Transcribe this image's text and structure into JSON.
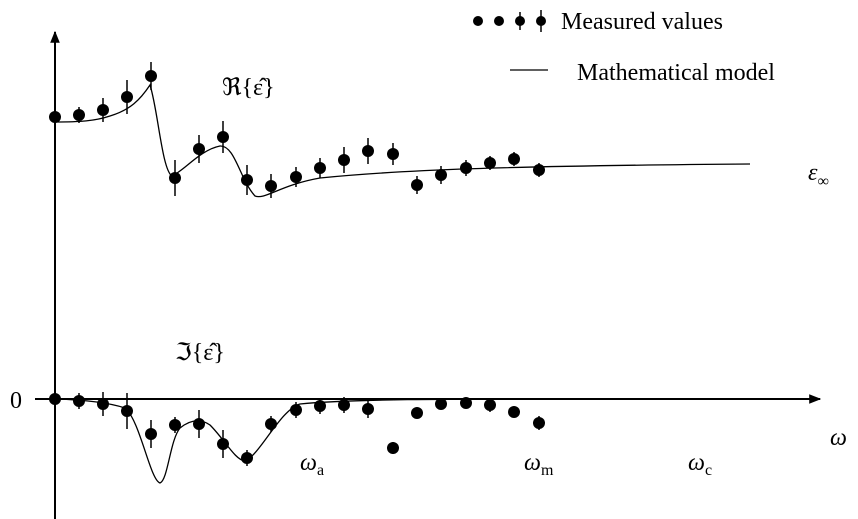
{
  "legend": {
    "measured": "Measured values",
    "model": "Mathematical model"
  },
  "labels": {
    "real": "ℜ{ε̂}",
    "imag": "ℑ{ε̂}",
    "eps_inf": {
      "main": "ε",
      "sub": "∞"
    },
    "zero": "0",
    "omega": "ω",
    "omega_a": {
      "main": "ω",
      "sub": "a"
    },
    "omega_m": {
      "main": "ω",
      "sub": "m"
    },
    "omega_c": {
      "main": "ω",
      "sub": "c"
    }
  }
}
